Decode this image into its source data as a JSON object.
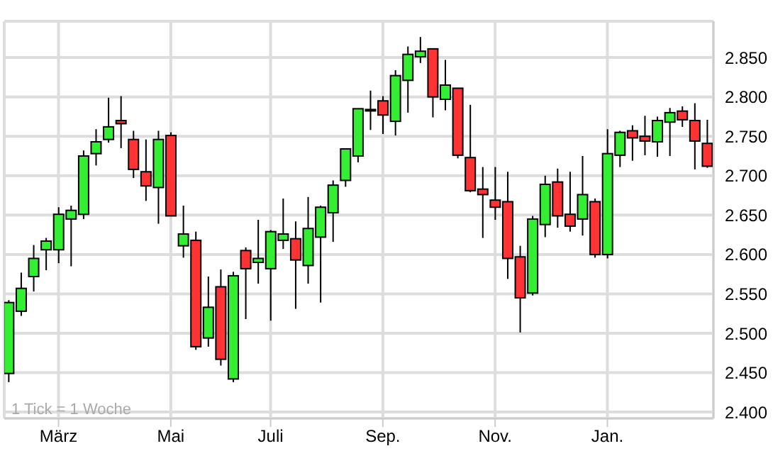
{
  "chart_data": {
    "type": "candlestick",
    "annotations": [
      "1 Tick = 1 Woche"
    ],
    "categories": [
      null,
      null,
      null,
      null,
      "März",
      null,
      null,
      null,
      null,
      null,
      null,
      null,
      null,
      "Mai",
      null,
      null,
      null,
      null,
      null,
      null,
      null,
      "Juli",
      null,
      null,
      null,
      null,
      null,
      null,
      null,
      null,
      "Sep.",
      null,
      null,
      null,
      null,
      null,
      null,
      null,
      null,
      "Nov.",
      null,
      null,
      null,
      null,
      null,
      null,
      null,
      null,
      "Jan.",
      null,
      null,
      null,
      null,
      null,
      null,
      null,
      null
    ],
    "ohlc": [
      [
        2449,
        2542,
        2438,
        2539
      ],
      [
        2528,
        2577,
        2522,
        2557
      ],
      [
        2572,
        2612,
        2553,
        2595
      ],
      [
        2606,
        2621,
        2580,
        2617
      ],
      [
        2606,
        2660,
        2589,
        2651
      ],
      [
        2645,
        2662,
        2585,
        2656
      ],
      [
        2651,
        2732,
        2645,
        2725
      ],
      [
        2728,
        2759,
        2713,
        2743
      ],
      [
        2746,
        2799,
        2742,
        2762
      ],
      [
        2770,
        2801,
        2735,
        2766
      ],
      [
        2746,
        2757,
        2697,
        2708
      ],
      [
        2705,
        2746,
        2668,
        2687
      ],
      [
        2685,
        2757,
        2639,
        2746
      ],
      [
        2751,
        2755,
        2649,
        2649
      ],
      [
        2611,
        2662,
        2596,
        2626
      ],
      [
        2618,
        2629,
        2479,
        2483
      ],
      [
        2494,
        2572,
        2483,
        2533
      ],
      [
        2559,
        2581,
        2459,
        2467
      ],
      [
        2442,
        2578,
        2438,
        2573
      ],
      [
        2605,
        2609,
        2518,
        2582
      ],
      [
        2590,
        2644,
        2563,
        2595
      ],
      [
        2582,
        2631,
        2516,
        2629
      ],
      [
        2618,
        2671,
        2607,
        2626
      ],
      [
        2620,
        2642,
        2531,
        2593
      ],
      [
        2586,
        2673,
        2563,
        2633
      ],
      [
        2622,
        2662,
        2539,
        2660
      ],
      [
        2653,
        2694,
        2616,
        2688
      ],
      [
        2694,
        2734,
        2686,
        2734
      ],
      [
        2725,
        2785,
        2717,
        2785
      ],
      [
        2783,
        2808,
        2758,
        2784
      ],
      [
        2795,
        2801,
        2753,
        2777
      ],
      [
        2769,
        2834,
        2751,
        2827
      ],
      [
        2821,
        2864,
        2780,
        2854
      ],
      [
        2851,
        2876,
        2843,
        2858
      ],
      [
        2861,
        2861,
        2774,
        2800
      ],
      [
        2797,
        2847,
        2783,
        2815
      ],
      [
        2811,
        2811,
        2722,
        2726
      ],
      [
        2723,
        2790,
        2679,
        2681
      ],
      [
        2683,
        2711,
        2621,
        2676
      ],
      [
        2669,
        2711,
        2644,
        2660
      ],
      [
        2667,
        2705,
        2569,
        2595
      ],
      [
        2597,
        2611,
        2501,
        2545
      ],
      [
        2551,
        2649,
        2548,
        2645
      ],
      [
        2638,
        2700,
        2622,
        2689
      ],
      [
        2692,
        2709,
        2634,
        2649
      ],
      [
        2651,
        2705,
        2629,
        2636
      ],
      [
        2645,
        2725,
        2624,
        2676
      ],
      [
        2667,
        2671,
        2596,
        2600
      ],
      [
        2600,
        2759,
        2595,
        2728
      ],
      [
        2726,
        2757,
        2711,
        2755
      ],
      [
        2757,
        2764,
        2719,
        2748
      ],
      [
        2750,
        2776,
        2726,
        2744
      ],
      [
        2743,
        2775,
        2724,
        2770
      ],
      [
        2768,
        2786,
        2725,
        2780
      ],
      [
        2782,
        2788,
        2762,
        2771
      ],
      [
        2770,
        2792,
        2708,
        2744
      ],
      [
        2741,
        2771,
        2710,
        2712
      ]
    ],
    "colors": [
      "#33ee33",
      "#33ee33",
      "#33ee33",
      "#33ee33",
      "#33ee33",
      "#33ee33",
      "#33ee33",
      "#33ee33",
      "#33ee33",
      "#ff3333",
      "#ff3333",
      "#ff3333",
      "#33ee33",
      "#ff3333",
      "#33ee33",
      "#ff3333",
      "#33ee33",
      "#ff3333",
      "#33ee33",
      "#ff3333",
      "#33ee33",
      "#33ee33",
      "#33ee33",
      "#ff3333",
      "#33ee33",
      "#33ee33",
      "#33ee33",
      "#33ee33",
      "#33ee33",
      "#33ee33",
      "#ff3333",
      "#33ee33",
      "#33ee33",
      "#33ee33",
      "#ff3333",
      "#33ee33",
      "#ff3333",
      "#ff3333",
      "#ff3333",
      "#ff3333",
      "#ff3333",
      "#ff3333",
      "#33ee33",
      "#33ee33",
      "#ff3333",
      "#ff3333",
      "#33ee33",
      "#ff3333",
      "#33ee33",
      "#33ee33",
      "#ff3333",
      "#ff3333",
      "#33ee33",
      "#33ee33",
      "#ff3333",
      "#ff3333",
      "#ff3333"
    ],
    "ylim": [
      2392,
      2896
    ],
    "yticks": [
      {
        "value": 2400,
        "label": "2.400"
      },
      {
        "value": 2450,
        "label": "2.450"
      },
      {
        "value": 2500,
        "label": "2.500"
      },
      {
        "value": 2550,
        "label": "2.550"
      },
      {
        "value": 2600,
        "label": "2.600"
      },
      {
        "value": 2650,
        "label": "2.650"
      },
      {
        "value": 2700,
        "label": "2.700"
      },
      {
        "value": 2750,
        "label": "2.750"
      },
      {
        "value": 2800,
        "label": "2.800"
      },
      {
        "value": 2850,
        "label": "2.850"
      }
    ],
    "grid": true
  }
}
